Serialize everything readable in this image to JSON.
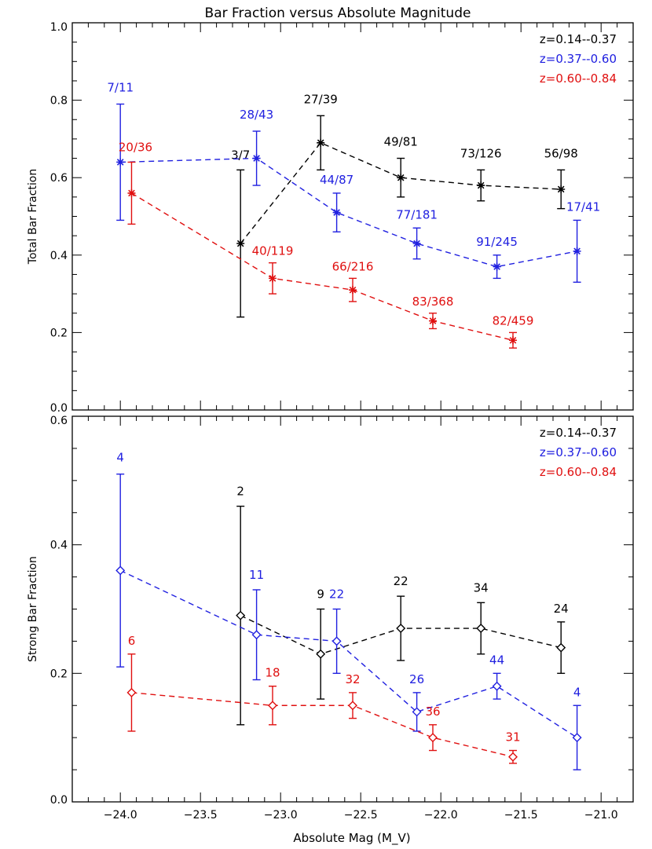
{
  "title": "Bar Fraction versus Absolute Magnitude",
  "xlabel": "Absolute Mag (M_V)",
  "x_ticks": [
    "-24.0",
    "-23.5",
    "-23.0",
    "-22.5",
    "-22.0",
    "-21.5",
    "-21.0"
  ],
  "colors": {
    "black": "#000000",
    "blue": "#2020e0",
    "red": "#e01010"
  },
  "chart_data": [
    {
      "type": "scatter",
      "ylabel": "Total Bar Fraction",
      "xlim": [
        -24.3,
        -20.8
      ],
      "ylim": [
        0.0,
        1.0
      ],
      "y_ticks": [
        "0.0",
        "0.2",
        "0.4",
        "0.6",
        "0.8",
        "1.0"
      ],
      "marker": "asterisk",
      "legend_position": "top-right",
      "series": [
        {
          "name": "z=0.14--0.37",
          "color": "black",
          "points": [
            {
              "x": -23.25,
              "y": 0.43,
              "lo": 0.24,
              "hi": 0.62,
              "label": "3/7"
            },
            {
              "x": -22.75,
              "y": 0.69,
              "lo": 0.62,
              "hi": 0.76,
              "label": "27/39"
            },
            {
              "x": -22.25,
              "y": 0.6,
              "lo": 0.55,
              "hi": 0.65,
              "label": "49/81"
            },
            {
              "x": -21.75,
              "y": 0.58,
              "lo": 0.54,
              "hi": 0.62,
              "label": "73/126"
            },
            {
              "x": -21.25,
              "y": 0.57,
              "lo": 0.52,
              "hi": 0.62,
              "label": "56/98"
            }
          ]
        },
        {
          "name": "z=0.37--0.60",
          "color": "blue",
          "points": [
            {
              "x": -24.0,
              "y": 0.64,
              "lo": 0.49,
              "hi": 0.79,
              "label": "7/11"
            },
            {
              "x": -23.15,
              "y": 0.65,
              "lo": 0.58,
              "hi": 0.72,
              "label": "28/43"
            },
            {
              "x": -22.65,
              "y": 0.51,
              "lo": 0.46,
              "hi": 0.56,
              "label": "44/87"
            },
            {
              "x": -22.15,
              "y": 0.43,
              "lo": 0.39,
              "hi": 0.47,
              "label": "77/181"
            },
            {
              "x": -21.65,
              "y": 0.37,
              "lo": 0.34,
              "hi": 0.4,
              "label": "91/245"
            },
            {
              "x": -21.15,
              "y": 0.41,
              "lo": 0.33,
              "hi": 0.49,
              "label": "17/41"
            }
          ]
        },
        {
          "name": "z=0.60--0.84",
          "color": "red",
          "points": [
            {
              "x": -23.93,
              "y": 0.56,
              "lo": 0.48,
              "hi": 0.64,
              "label": "20/36"
            },
            {
              "x": -23.05,
              "y": 0.34,
              "lo": 0.3,
              "hi": 0.38,
              "label": "40/119"
            },
            {
              "x": -22.55,
              "y": 0.31,
              "lo": 0.28,
              "hi": 0.34,
              "label": "66/216"
            },
            {
              "x": -22.05,
              "y": 0.23,
              "lo": 0.21,
              "hi": 0.25,
              "label": "83/368"
            },
            {
              "x": -21.55,
              "y": 0.18,
              "lo": 0.16,
              "hi": 0.2,
              "label": "82/459"
            }
          ]
        }
      ]
    },
    {
      "type": "scatter",
      "ylabel": "Strong Bar Fraction",
      "xlim": [
        -24.3,
        -20.8
      ],
      "ylim": [
        0.0,
        0.6
      ],
      "y_ticks": [
        "0.0",
        "0.2",
        "0.4",
        "0.6"
      ],
      "marker": "diamond",
      "legend_position": "top-right",
      "series": [
        {
          "name": "z=0.14--0.37",
          "color": "black",
          "points": [
            {
              "x": -23.25,
              "y": 0.29,
              "lo": 0.12,
              "hi": 0.46,
              "label": "2"
            },
            {
              "x": -22.75,
              "y": 0.23,
              "lo": 0.16,
              "hi": 0.3,
              "label": "9"
            },
            {
              "x": -22.25,
              "y": 0.27,
              "lo": 0.22,
              "hi": 0.32,
              "label": "22"
            },
            {
              "x": -21.75,
              "y": 0.27,
              "lo": 0.23,
              "hi": 0.31,
              "label": "34"
            },
            {
              "x": -21.25,
              "y": 0.24,
              "lo": 0.2,
              "hi": 0.28,
              "label": "24"
            }
          ]
        },
        {
          "name": "z=0.37--0.60",
          "color": "blue",
          "points": [
            {
              "x": -24.0,
              "y": 0.36,
              "lo": 0.21,
              "hi": 0.51,
              "label": "4"
            },
            {
              "x": -23.15,
              "y": 0.26,
              "lo": 0.19,
              "hi": 0.33,
              "label": "11"
            },
            {
              "x": -22.65,
              "y": 0.25,
              "lo": 0.2,
              "hi": 0.3,
              "label": "22"
            },
            {
              "x": -22.15,
              "y": 0.14,
              "lo": 0.11,
              "hi": 0.17,
              "label": "26"
            },
            {
              "x": -21.65,
              "y": 0.18,
              "lo": 0.16,
              "hi": 0.2,
              "label": "44"
            },
            {
              "x": -21.15,
              "y": 0.1,
              "lo": 0.05,
              "hi": 0.15,
              "label": "4"
            }
          ]
        },
        {
          "name": "z=0.60--0.84",
          "color": "red",
          "points": [
            {
              "x": -23.93,
              "y": 0.17,
              "lo": 0.11,
              "hi": 0.23,
              "label": "6"
            },
            {
              "x": -23.05,
              "y": 0.15,
              "lo": 0.12,
              "hi": 0.18,
              "label": "18"
            },
            {
              "x": -22.55,
              "y": 0.15,
              "lo": 0.13,
              "hi": 0.17,
              "label": "32"
            },
            {
              "x": -22.05,
              "y": 0.1,
              "lo": 0.08,
              "hi": 0.12,
              "label": "36"
            },
            {
              "x": -21.55,
              "y": 0.07,
              "lo": 0.06,
              "hi": 0.08,
              "label": "31"
            }
          ]
        }
      ]
    }
  ]
}
